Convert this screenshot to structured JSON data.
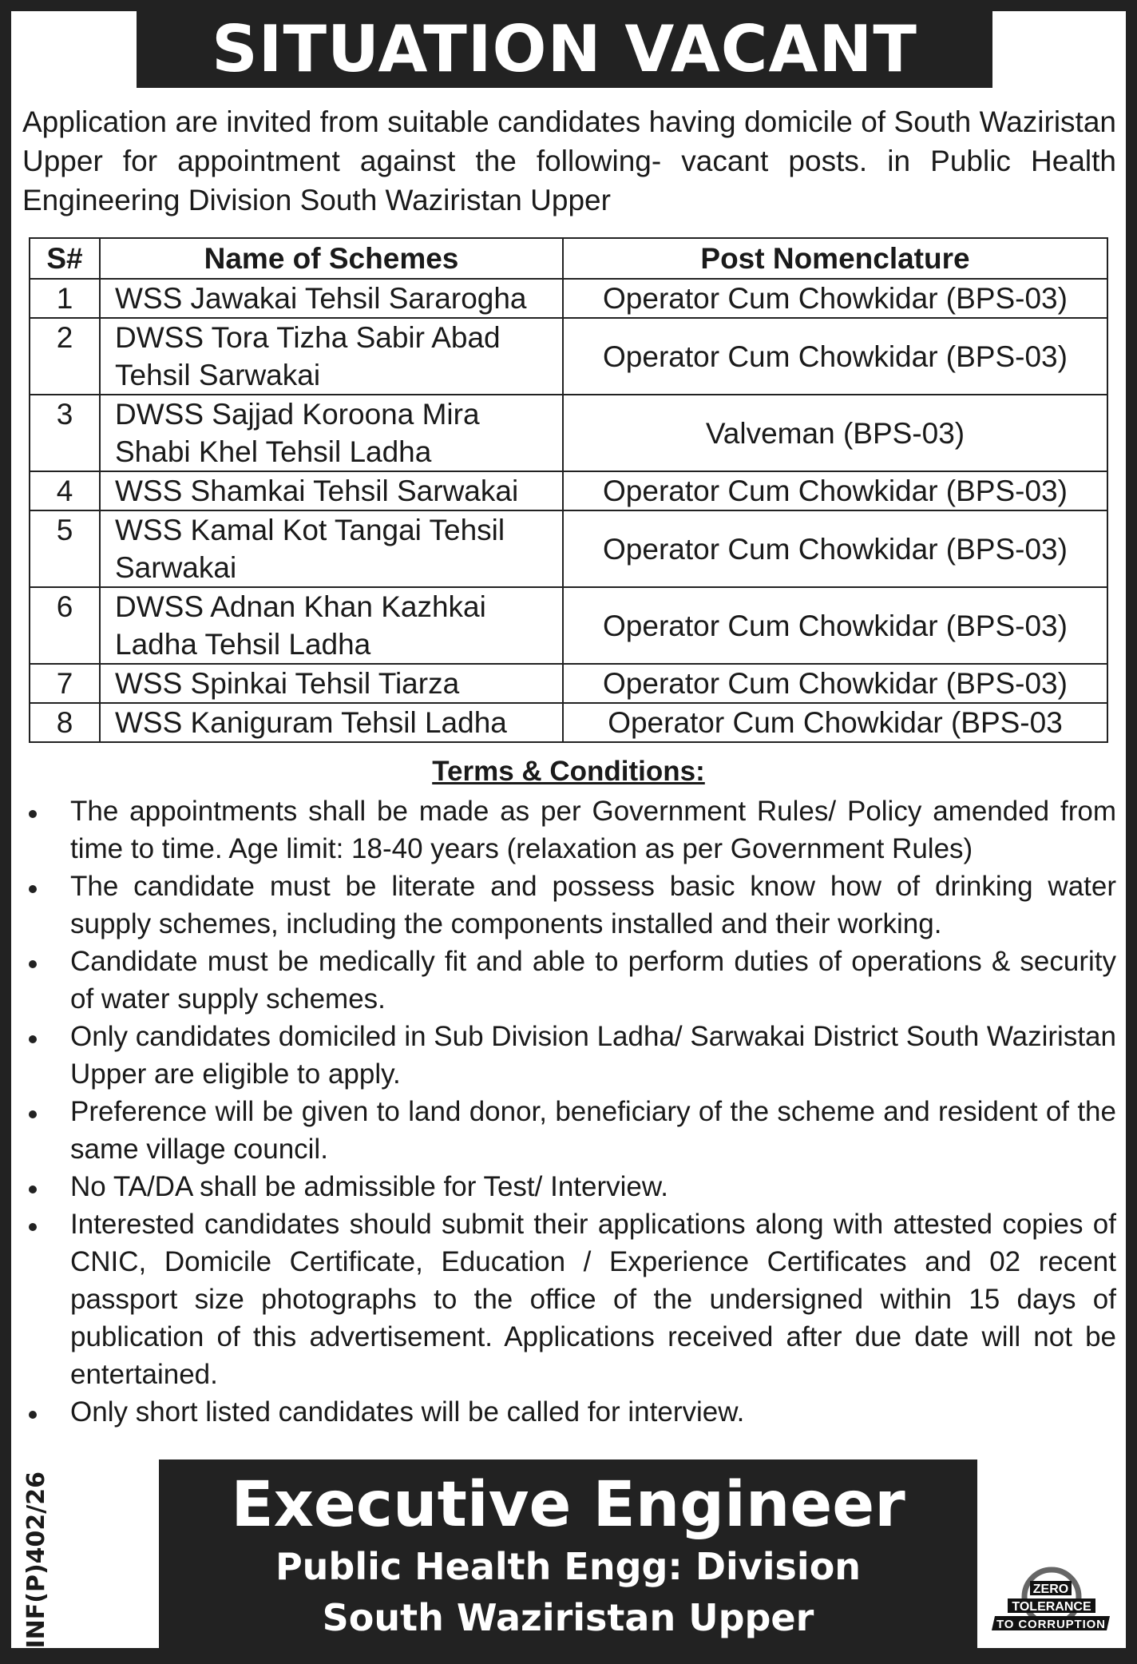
{
  "title": "SITUATION VACANT",
  "intro": "Application are invited from suitable candidates having domicile of South Waziristan Upper for appointment against the following- vacant posts. in Public Health Engineering Division South Waziristan Upper",
  "table": {
    "headers": [
      "S#",
      "Name of Schemes",
      "Post Nomenclature"
    ],
    "rows": [
      {
        "sn": "1",
        "scheme": "WSS Jawakai Tehsil Sararogha",
        "post": "Operator Cum Chowkidar (BPS-03)"
      },
      {
        "sn": "2",
        "scheme": "DWSS Tora Tizha Sabir Abad Tehsil Sarwakai",
        "post": "Operator Cum Chowkidar (BPS-03)"
      },
      {
        "sn": "3",
        "scheme": "DWSS Sajjad Koroona Mira Shabi Khel Tehsil Ladha",
        "post": "Valveman (BPS-03)"
      },
      {
        "sn": "4",
        "scheme": "WSS Shamkai Tehsil Sarwakai",
        "post": "Operator Cum Chowkidar (BPS-03)"
      },
      {
        "sn": "5",
        "scheme": "WSS Kamal Kot Tangai Tehsil Sarwakai",
        "post": "Operator Cum Chowkidar (BPS-03)"
      },
      {
        "sn": "6",
        "scheme": "DWSS Adnan Khan Kazhkai Ladha Tehsil Ladha",
        "post": "Operator Cum Chowkidar (BPS-03)"
      },
      {
        "sn": "7",
        "scheme": "WSS Spinkai Tehsil Tiarza",
        "post": "Operator Cum Chowkidar (BPS-03)"
      },
      {
        "sn": "8",
        "scheme": "WSS Kaniguram Tehsil Ladha",
        "post": "Operator Cum Chowkidar (BPS-03"
      }
    ]
  },
  "terms_heading": "Terms & Conditions:",
  "terms": [
    "The appointments shall be made as per Government Rules/ Policy amended from time to time. Age limit: 18-40 years (relaxation as per Government Rules)",
    "The candidate must be literate and possess basic know how of drinking water supply schemes, including the components installed and their working.",
    "Candidate must be medically fit and able to perform duties of operations & security of water supply schemes.",
    "Only candidates domiciled in Sub Division Ladha/ Sarwakai District South Waziristan Upper are eligible to apply.",
    "Preference will be given to land donor, beneficiary of the scheme and resident of the same village council.",
    "No TA/DA shall be admissible for Test/ Interview.",
    "Interested candidates should submit their applications along with attested copies of CNIC, Domicile Certificate, Education / Experience Certificates and 02 recent passport size photographs to the office of the undersigned within 15 days of publication of this advertisement. Applications received after due date will not be entertained.",
    "Only short listed candidates will be called for interview."
  ],
  "signature": {
    "title": "Executive Engineer",
    "line1": "Public Health Engg: Division",
    "line2": "South Waziristan Upper"
  },
  "ref_no": "INF(P)402/26",
  "logo": {
    "text": [
      "ZERO",
      "TOLERANCE",
      "TO CORRUPTION"
    ]
  }
}
